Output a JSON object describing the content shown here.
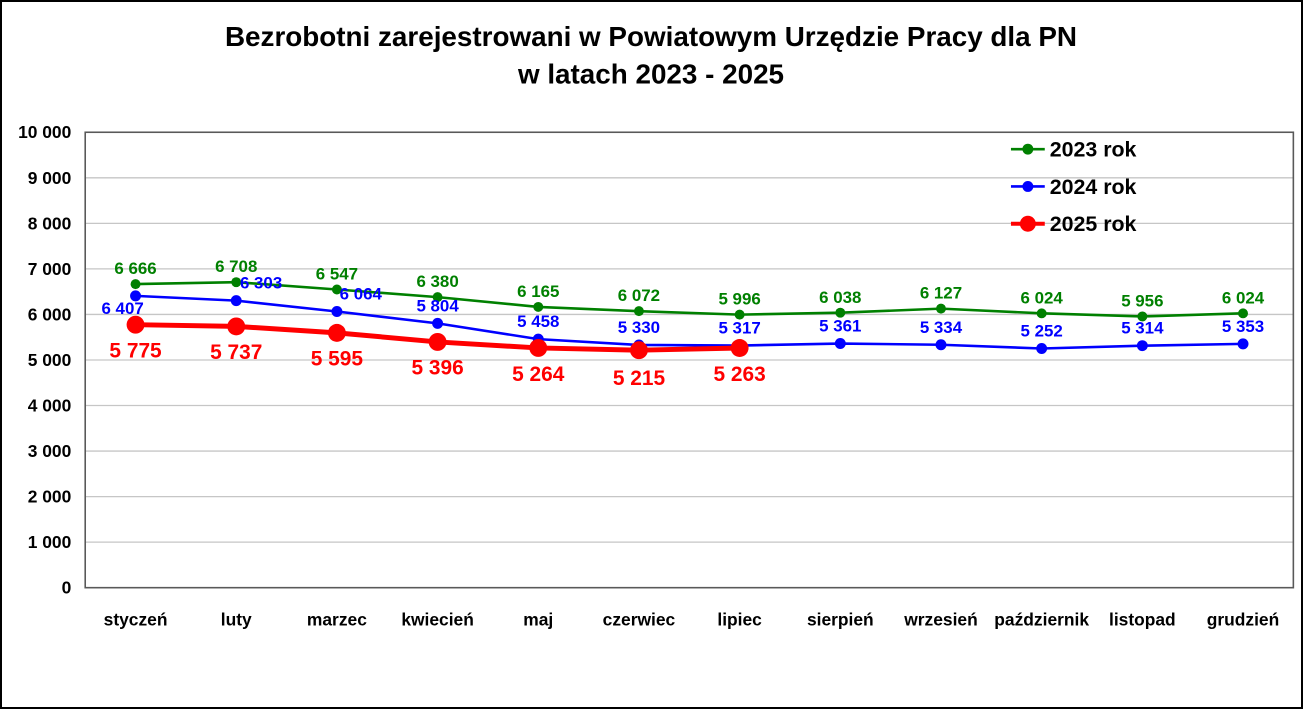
{
  "chart_data": {
    "type": "line",
    "title_line1": "Bezrobotni zarejestrowani w Powiatowym Urzędzie Pracy dla PN",
    "title_line2": "w latach 2023 - 2025",
    "categories": [
      "styczeń",
      "luty",
      "marzec",
      "kwiecień",
      "maj",
      "czerwiec",
      "lipiec",
      "sierpień",
      "wrzesień",
      "październik",
      "listopad",
      "grudzień"
    ],
    "series": [
      {
        "name": "2023 rok",
        "color": "#008000",
        "values": [
          6666,
          6708,
          6547,
          6380,
          6165,
          6072,
          5996,
          6038,
          6127,
          6024,
          5956,
          6024
        ]
      },
      {
        "name": "2024 rok",
        "color": "#0000ff",
        "values": [
          6407,
          6303,
          6064,
          5804,
          5458,
          5330,
          5317,
          5361,
          5334,
          5252,
          5314,
          5353
        ]
      },
      {
        "name": "2025 rok",
        "color": "#ff0000",
        "values": [
          5775,
          5737,
          5595,
          5396,
          5264,
          5215,
          5263
        ]
      }
    ],
    "ylim": [
      0,
      10000
    ],
    "ytick_step": 1000,
    "grid": true,
    "data_labels": true,
    "legend_position": "top-right",
    "xlabel": "",
    "ylabel": ""
  },
  "colors": {
    "grid": "#c6c6c6",
    "axis": "#595959",
    "text": "#000000",
    "background": "#ffffff",
    "frame_border": "#000000",
    "series_2023": "#008000",
    "series_2024": "#0000ff",
    "series_2025": "#ff0000"
  }
}
